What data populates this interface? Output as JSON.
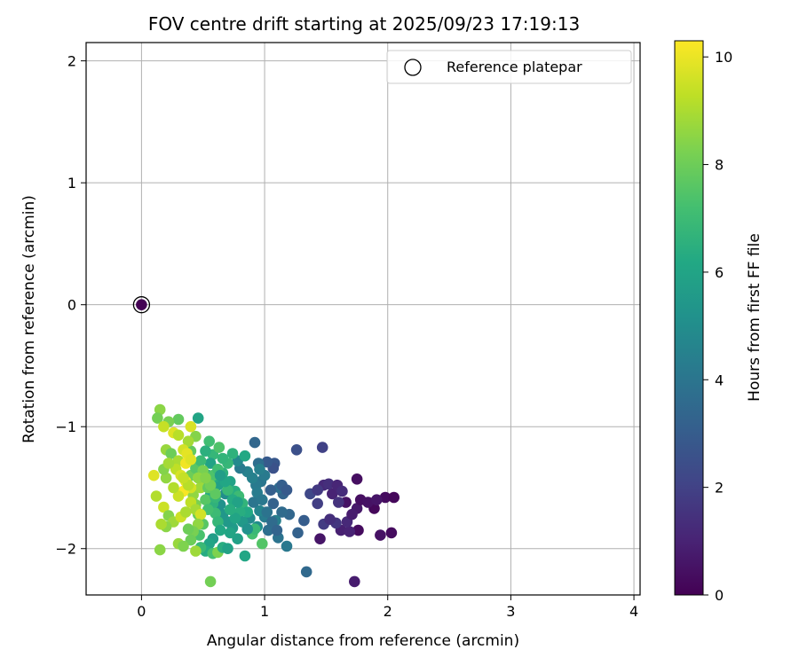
{
  "chart_data": {
    "type": "scatter",
    "title": "FOV centre drift starting at 2025/09/23 17:19:13",
    "xlabel": "Angular distance from reference (arcmin)",
    "ylabel": "Rotation from reference (arcmin)",
    "colorbar_label": "Hours from first FF file",
    "xlim": [
      -0.45,
      4.05
    ],
    "ylim": [
      -2.38,
      2.15
    ],
    "xticks": [
      0,
      1,
      2,
      3,
      4
    ],
    "yticks": [
      -2,
      -1,
      0,
      1,
      2
    ],
    "xtick_labels": [
      "0",
      "1",
      "2",
      "3",
      "4"
    ],
    "ytick_labels": [
      "−2",
      "−1",
      "0",
      "1",
      "2"
    ],
    "color_range": [
      0,
      10.3
    ],
    "colorbar_ticks": [
      0,
      2,
      4,
      6,
      8,
      10
    ],
    "colorbar_tick_labels": [
      "0",
      "2",
      "4",
      "6",
      "8",
      "10"
    ],
    "grid": true,
    "legend": {
      "label": "Reference platepar",
      "position": "top-right"
    },
    "reference_point": {
      "x": 0,
      "y": 0,
      "hours": 0
    },
    "series": [
      {
        "name": "FOV centre drift",
        "points": [
          [
            1.75,
            -1.43,
            0.4
          ],
          [
            1.98,
            -1.58,
            0.3
          ],
          [
            2.05,
            -1.58,
            0.2
          ],
          [
            2.03,
            -1.87,
            0.3
          ],
          [
            1.94,
            -1.89,
            0.5
          ],
          [
            1.76,
            -1.85,
            0.3
          ],
          [
            1.75,
            -1.67,
            0.7
          ],
          [
            1.73,
            -2.27,
            0.8
          ],
          [
            1.45,
            -1.92,
            0.6
          ],
          [
            1.62,
            -1.85,
            0.9
          ],
          [
            1.66,
            -1.62,
            0.5
          ],
          [
            1.89,
            -1.67,
            0.2
          ],
          [
            1.78,
            -1.6,
            0.4
          ],
          [
            1.55,
            -1.55,
            1.0
          ],
          [
            1.48,
            -1.48,
            1.2
          ],
          [
            1.52,
            -1.47,
            1.4
          ],
          [
            1.59,
            -1.48,
            1.1
          ],
          [
            1.63,
            -1.53,
            1.3
          ],
          [
            1.6,
            -1.62,
            1.5
          ],
          [
            1.58,
            -1.79,
            1.6
          ],
          [
            1.48,
            -1.8,
            1.8
          ],
          [
            1.53,
            -1.76,
            1.4
          ],
          [
            1.69,
            -1.86,
            1.0
          ],
          [
            1.67,
            -1.78,
            1.2
          ],
          [
            1.71,
            -1.72,
            0.8
          ],
          [
            1.47,
            -1.17,
            2.0
          ],
          [
            1.26,
            -1.19,
            2.5
          ],
          [
            1.43,
            -1.63,
            1.9
          ],
          [
            1.37,
            -1.55,
            2.2
          ],
          [
            1.43,
            -1.52,
            1.7
          ],
          [
            1.84,
            -1.62,
            0.5
          ],
          [
            1.91,
            -1.6,
            0.6
          ],
          [
            1.34,
            -2.19,
            3.5
          ],
          [
            1.32,
            -1.77,
            3.0
          ],
          [
            1.27,
            -1.87,
            3.2
          ],
          [
            1.2,
            -1.72,
            3.4
          ],
          [
            1.14,
            -1.7,
            3.6
          ],
          [
            1.15,
            -1.55,
            3.3
          ],
          [
            1.12,
            -1.5,
            3.8
          ],
          [
            1.05,
            -1.52,
            3.1
          ],
          [
            1.08,
            -1.3,
            2.8
          ],
          [
            1.07,
            -1.34,
            2.6
          ],
          [
            1.02,
            -1.29,
            2.9
          ],
          [
            0.95,
            -1.3,
            3.7
          ],
          [
            0.92,
            -1.13,
            3.4
          ],
          [
            0.97,
            -1.45,
            4.0
          ],
          [
            0.93,
            -1.48,
            4.2
          ],
          [
            1.11,
            -1.91,
            3.9
          ],
          [
            1.18,
            -1.98,
            4.1
          ],
          [
            1.03,
            -1.85,
            3.7
          ],
          [
            1.0,
            -1.74,
            4.3
          ],
          [
            1.07,
            -1.63,
            3.2
          ],
          [
            1.09,
            -1.77,
            4.4
          ],
          [
            0.96,
            -1.69,
            4.6
          ],
          [
            0.91,
            -1.62,
            4.0
          ],
          [
            0.86,
            -1.37,
            4.5
          ],
          [
            0.8,
            -1.34,
            4.2
          ],
          [
            0.78,
            -1.28,
            4.8
          ],
          [
            0.84,
            -1.24,
            6.2
          ],
          [
            0.74,
            -1.22,
            6.6
          ],
          [
            0.88,
            -1.75,
            4.9
          ],
          [
            0.94,
            -1.82,
            5.0
          ],
          [
            0.98,
            -1.96,
            7.5
          ],
          [
            0.84,
            -2.06,
            6.1
          ],
          [
            0.78,
            -1.92,
            5.8
          ],
          [
            0.74,
            -1.83,
            5.6
          ],
          [
            0.7,
            -1.78,
            5.5
          ],
          [
            0.72,
            -1.87,
            6.0
          ],
          [
            0.66,
            -1.72,
            5.4
          ],
          [
            0.64,
            -1.64,
            5.2
          ],
          [
            0.68,
            -1.55,
            5.0
          ],
          [
            0.62,
            -1.48,
            5.8
          ],
          [
            0.6,
            -1.41,
            6.3
          ],
          [
            0.66,
            -1.38,
            6.5
          ],
          [
            0.7,
            -1.3,
            6.8
          ],
          [
            0.72,
            -1.45,
            5.9
          ],
          [
            0.76,
            -1.53,
            6.4
          ],
          [
            0.79,
            -1.57,
            7.0
          ],
          [
            0.82,
            -1.63,
            6.7
          ],
          [
            0.86,
            -1.7,
            6.2
          ],
          [
            0.9,
            -1.88,
            7.2
          ],
          [
            0.92,
            -1.84,
            6.9
          ],
          [
            0.8,
            -1.7,
            6.4
          ],
          [
            0.58,
            -1.23,
            6.8
          ],
          [
            0.63,
            -1.17,
            7.4
          ],
          [
            0.55,
            -1.12,
            7.1
          ],
          [
            0.46,
            -0.93,
            6.0
          ],
          [
            0.52,
            -1.2,
            6.5
          ],
          [
            0.56,
            -1.3,
            5.9
          ],
          [
            0.54,
            -1.4,
            5.6
          ],
          [
            0.5,
            -1.46,
            5.3
          ],
          [
            0.56,
            -1.56,
            6.1
          ],
          [
            0.58,
            -1.63,
            6.6
          ],
          [
            0.6,
            -1.71,
            7.0
          ],
          [
            0.62,
            -1.78,
            6.8
          ],
          [
            0.64,
            -1.85,
            6.2
          ],
          [
            0.58,
            -1.92,
            5.7
          ],
          [
            0.55,
            -1.96,
            6.0
          ],
          [
            0.52,
            -2.02,
            6.3
          ],
          [
            0.58,
            -2.04,
            7.2
          ],
          [
            0.62,
            -2.03,
            8.3
          ],
          [
            0.56,
            -2.27,
            8.1
          ],
          [
            0.66,
            -1.99,
            6.4
          ],
          [
            0.7,
            -2.0,
            5.9
          ],
          [
            0.48,
            -1.99,
            6.9
          ],
          [
            0.47,
            -1.89,
            7.3
          ],
          [
            0.5,
            -1.8,
            7.6
          ],
          [
            0.46,
            -1.72,
            7.9
          ],
          [
            0.44,
            -1.64,
            8.2
          ],
          [
            0.42,
            -1.56,
            8.6
          ],
          [
            0.48,
            -1.5,
            8.8
          ],
          [
            0.52,
            -1.6,
            7.6
          ],
          [
            0.54,
            -1.68,
            7.2
          ],
          [
            0.6,
            -1.58,
            6.8
          ],
          [
            0.4,
            -1.4,
            8.0
          ],
          [
            0.44,
            -1.34,
            7.6
          ],
          [
            0.48,
            -1.28,
            7.0
          ],
          [
            0.4,
            -1.2,
            7.8
          ],
          [
            0.44,
            -1.08,
            8.4
          ],
          [
            0.38,
            -1.12,
            8.9
          ],
          [
            0.3,
            -0.94,
            7.8
          ],
          [
            0.22,
            -0.96,
            8.2
          ],
          [
            0.15,
            -0.86,
            8.5
          ],
          [
            0.13,
            -0.93,
            8.1
          ],
          [
            0.18,
            -1.0,
            9.4
          ],
          [
            0.26,
            -1.05,
            9.8
          ],
          [
            0.3,
            -1.07,
            9.2
          ],
          [
            0.2,
            -1.19,
            8.7
          ],
          [
            0.24,
            -1.22,
            8.0
          ],
          [
            0.3,
            -1.28,
            9.0
          ],
          [
            0.34,
            -1.19,
            9.6
          ],
          [
            0.37,
            -1.22,
            9.9
          ],
          [
            0.4,
            -1.0,
            9.7
          ],
          [
            0.36,
            -1.3,
            10.1
          ],
          [
            0.4,
            -1.27,
            9.8
          ],
          [
            0.28,
            -1.35,
            9.3
          ],
          [
            0.32,
            -1.4,
            9.7
          ],
          [
            0.36,
            -1.45,
            10.0
          ],
          [
            0.4,
            -1.5,
            9.6
          ],
          [
            0.34,
            -1.53,
            10.2
          ],
          [
            0.3,
            -1.57,
            9.5
          ],
          [
            0.26,
            -1.5,
            9.1
          ],
          [
            0.2,
            -1.42,
            8.6
          ],
          [
            0.18,
            -1.35,
            8.4
          ],
          [
            0.22,
            -1.3,
            8.9
          ],
          [
            0.1,
            -1.4,
            9.8
          ],
          [
            0.12,
            -1.57,
            9.1
          ],
          [
            0.18,
            -1.66,
            9.5
          ],
          [
            0.22,
            -1.73,
            8.4
          ],
          [
            0.26,
            -1.78,
            8.8
          ],
          [
            0.2,
            -1.82,
            8.5
          ],
          [
            0.16,
            -1.8,
            9.0
          ],
          [
            0.32,
            -1.74,
            9.5
          ],
          [
            0.36,
            -1.7,
            9.0
          ],
          [
            0.4,
            -1.62,
            9.3
          ],
          [
            0.44,
            -1.68,
            8.9
          ],
          [
            0.48,
            -1.72,
            9.6
          ],
          [
            0.46,
            -1.8,
            8.6
          ],
          [
            0.42,
            -1.86,
            8.2
          ],
          [
            0.4,
            -1.93,
            8.0
          ],
          [
            0.3,
            -1.96,
            8.7
          ],
          [
            0.34,
            -1.98,
            8.3
          ],
          [
            0.15,
            -2.01,
            8.5
          ],
          [
            0.44,
            -2.02,
            8.8
          ],
          [
            0.38,
            -1.84,
            8.0
          ],
          [
            0.5,
            -1.36,
            8.2
          ],
          [
            0.46,
            -1.42,
            8.6
          ],
          [
            0.54,
            -1.5,
            7.8
          ],
          [
            0.58,
            -1.4,
            7.4
          ],
          [
            0.62,
            -1.35,
            7.1
          ],
          [
            0.66,
            -1.26,
            6.7
          ],
          [
            0.7,
            -1.52,
            6.9
          ],
          [
            0.74,
            -1.6,
            6.3
          ],
          [
            0.78,
            -1.62,
            5.9
          ],
          [
            0.82,
            -1.78,
            5.5
          ],
          [
            0.86,
            -1.84,
            5.2
          ],
          [
            0.76,
            -1.75,
            6.0
          ],
          [
            0.72,
            -1.68,
            6.4
          ],
          [
            0.68,
            -1.45,
            6.1
          ],
          [
            0.64,
            -1.4,
            5.7
          ],
          [
            0.9,
            -1.42,
            4.5
          ],
          [
            0.94,
            -1.54,
            4.3
          ],
          [
            0.98,
            -1.6,
            4.1
          ],
          [
            1.02,
            -1.7,
            3.9
          ],
          [
            1.06,
            -1.78,
            3.6
          ],
          [
            1.1,
            -1.85,
            3.3
          ],
          [
            1.14,
            -1.48,
            3.1
          ],
          [
            1.18,
            -1.52,
            2.9
          ],
          [
            1.0,
            -1.4,
            4.2
          ],
          [
            0.96,
            -1.35,
            4.4
          ],
          [
            0.6,
            -1.55,
            7.7
          ],
          [
            0.56,
            -1.48,
            8.1
          ],
          [
            0.52,
            -1.42,
            8.4
          ],
          [
            0.38,
            -1.48,
            9.2
          ],
          [
            0.34,
            -1.42,
            9.4
          ]
        ]
      }
    ]
  }
}
